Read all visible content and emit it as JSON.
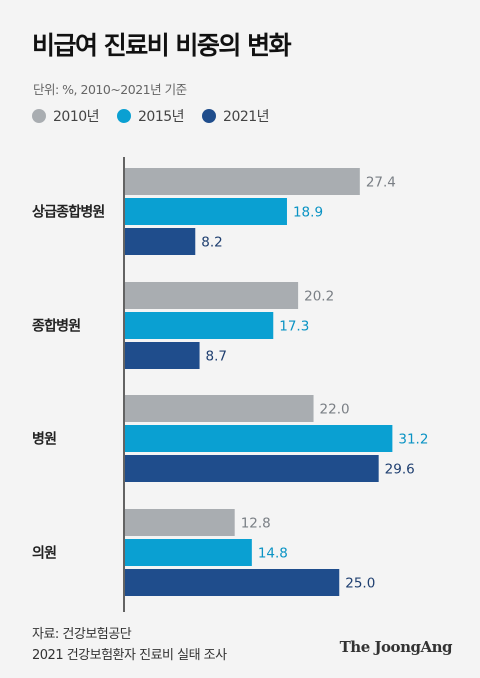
{
  "title": "비급여 진료비 비중의 변화",
  "unit_note": "단위: %, 2010~2021년 기준",
  "footer": {
    "source": "자료: 건강보험공단",
    "survey": "2021 건강보험환자 진료비 실태 조사"
  },
  "brand": "The JoongAng",
  "colors": {
    "2010": "#a9adb1",
    "2015": "#0aa0d2",
    "2021": "#1f4d8c",
    "label_2010": "#7a7f85",
    "label_2015": "#0a93c4",
    "label_2021": "#1f3f70"
  },
  "chart_data": {
    "type": "bar",
    "orientation": "horizontal",
    "categories": [
      "상급종합병원",
      "종합병원",
      "병원",
      "의원"
    ],
    "series": [
      {
        "name": "2010년",
        "values": [
          27.4,
          20.2,
          22.0,
          12.8
        ]
      },
      {
        "name": "2015년",
        "values": [
          18.9,
          17.3,
          31.2,
          14.8
        ]
      },
      {
        "name": "2021년",
        "values": [
          8.2,
          8.7,
          29.6,
          25.0
        ]
      }
    ],
    "value_labels": [
      [
        "27.4",
        "20.2",
        "22.0",
        "12.8"
      ],
      [
        "18.9",
        "17.3",
        "31.2",
        "14.8"
      ],
      [
        "8.2",
        "8.7",
        "29.6",
        "25.0"
      ]
    ],
    "xlim": [
      0,
      35
    ],
    "legend": "top-left",
    "grid": false
  }
}
